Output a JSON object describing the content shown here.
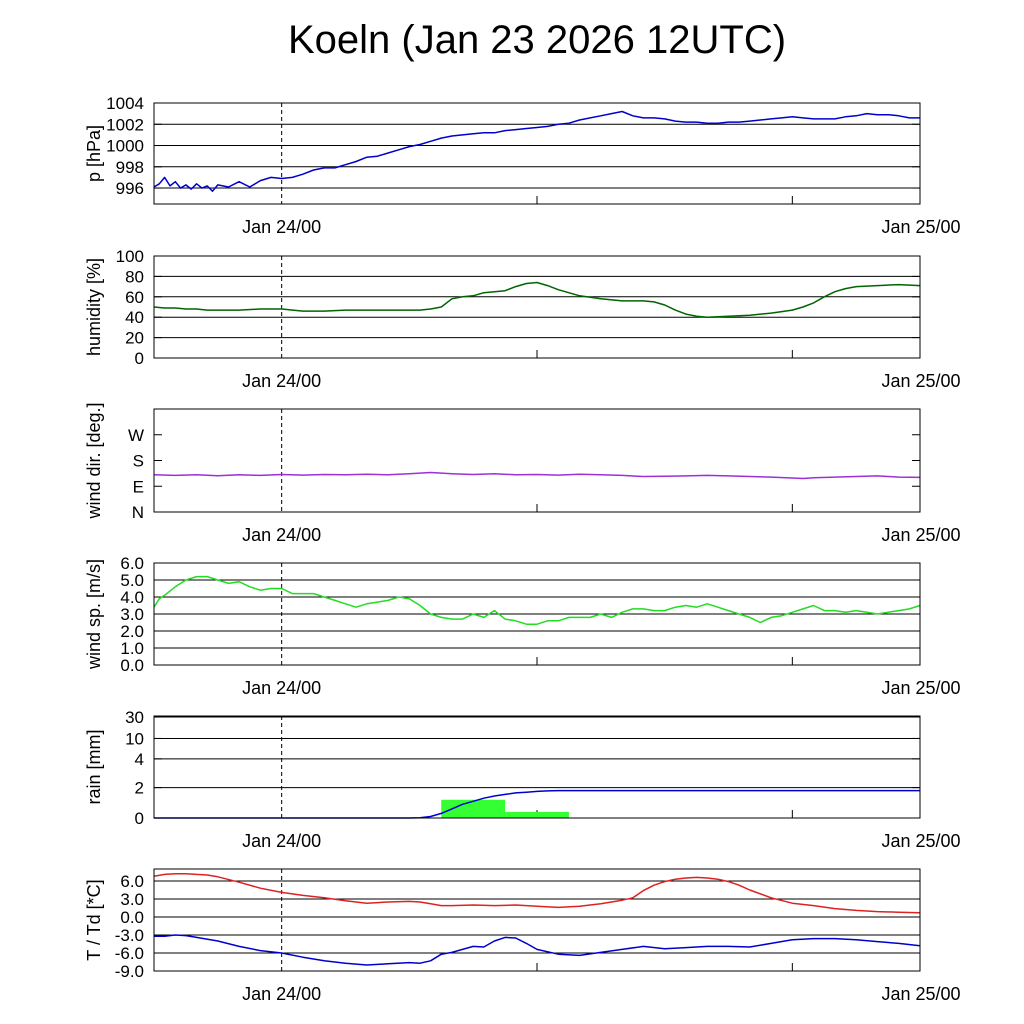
{
  "page": {
    "title": "Koeln (Jan 23 2026 12UTC)"
  },
  "time_axis": {
    "tick_labels": [
      "Jan 24/00",
      "Jan 25/00"
    ],
    "unit": "hours from Jan 23 12UTC"
  },
  "chart_data": [
    {
      "type": "line",
      "ylabel": "p [hPa]",
      "ylim": [
        994.5,
        1004
      ],
      "yticks": [
        996,
        998,
        1000,
        1002,
        1004
      ],
      "ytick_labels": [
        "996",
        "998",
        "1000",
        "1002",
        "1004"
      ],
      "grid": true,
      "series": [
        {
          "color": "#0000cc",
          "x": [
            0,
            0.5,
            1,
            1.5,
            2,
            2.5,
            3,
            3.5,
            4,
            4.5,
            5,
            5.5,
            6,
            7,
            8,
            9,
            10,
            11,
            12,
            13,
            14,
            15,
            16,
            17,
            18,
            19,
            20,
            21,
            22,
            23,
            24,
            25,
            26,
            27,
            28,
            29,
            30,
            31,
            32,
            33,
            34,
            35,
            36,
            37,
            38,
            39,
            40,
            41,
            42,
            43,
            44,
            45,
            46,
            47,
            48,
            49,
            50,
            51,
            52,
            53,
            54,
            55,
            56,
            57,
            58,
            59,
            60,
            61,
            62,
            63,
            64,
            65,
            66,
            67,
            68,
            69,
            70,
            71,
            72
          ],
          "y": [
            996.1,
            996.4,
            997.0,
            996.2,
            996.6,
            996.0,
            996.3,
            995.9,
            996.4,
            996.0,
            996.2,
            995.7,
            996.3,
            996.1,
            996.6,
            996.1,
            996.7,
            997.0,
            996.9,
            997.0,
            997.3,
            997.7,
            997.9,
            997.9,
            998.2,
            998.5,
            998.9,
            999.0,
            999.3,
            999.6,
            999.9,
            1000.1,
            1000.4,
            1000.7,
            1000.9,
            1001.0,
            1001.1,
            1001.2,
            1001.2,
            1001.4,
            1001.5,
            1001.6,
            1001.7,
            1001.8,
            1002.0,
            1002.1,
            1002.4,
            1002.6,
            1002.8,
            1003.0,
            1003.2,
            1002.8,
            1002.6,
            1002.6,
            1002.5,
            1002.3,
            1002.2,
            1002.2,
            1002.1,
            1002.1,
            1002.2,
            1002.2,
            1002.3,
            1002.4,
            1002.5,
            1002.6,
            1002.7,
            1002.6,
            1002.5,
            1002.5,
            1002.5,
            1002.7,
            1002.8,
            1003.0,
            1002.9,
            1002.9,
            1002.8,
            1002.6,
            1002.6
          ]
        }
      ]
    },
    {
      "type": "line",
      "ylabel": "humidity [%]",
      "ylim": [
        0,
        100
      ],
      "yticks": [
        0,
        20,
        40,
        60,
        80,
        100
      ],
      "ytick_labels": [
        "0",
        "20",
        "40",
        "60",
        "80",
        "100"
      ],
      "grid": true,
      "series": [
        {
          "color": "#006400",
          "x": [
            0,
            1,
            2,
            3,
            4,
            5,
            6,
            8,
            10,
            12,
            14,
            15,
            16,
            18,
            20,
            22,
            23,
            24,
            25,
            26,
            27,
            28,
            29,
            30,
            31,
            32,
            33,
            34,
            35,
            36,
            37,
            38,
            40,
            42,
            44,
            45,
            46,
            47,
            48,
            49,
            50,
            51,
            52,
            54,
            56,
            58,
            60,
            61,
            62,
            63,
            64,
            65,
            66,
            68,
            70,
            72
          ],
          "y": [
            50,
            49,
            49,
            48,
            48,
            47,
            47,
            47,
            48,
            48,
            46,
            46,
            46,
            47,
            47,
            47,
            47,
            47,
            47,
            48,
            50,
            58,
            60,
            61,
            64,
            65,
            66,
            70,
            73,
            74,
            71,
            67,
            61,
            58,
            56,
            56,
            56,
            55,
            52,
            47,
            43,
            41,
            40,
            41,
            42,
            44,
            47,
            50,
            54,
            60,
            65,
            68,
            70,
            71,
            72,
            71
          ]
        }
      ]
    },
    {
      "type": "line",
      "ylabel": "wind dir. [deg.]",
      "ylim": [
        0,
        360
      ],
      "yticks": [
        0,
        90,
        180,
        270
      ],
      "ytick_labels": [
        "N",
        "E",
        "S",
        "W"
      ],
      "grid": false,
      "series": [
        {
          "color": "#9b30d9",
          "x": [
            0,
            2,
            4,
            6,
            8,
            10,
            12,
            14,
            16,
            18,
            20,
            22,
            24,
            25,
            26,
            27,
            28,
            30,
            32,
            34,
            36,
            38,
            40,
            42,
            44,
            46,
            48,
            50,
            52,
            54,
            56,
            58,
            60,
            61,
            62,
            64,
            66,
            68,
            70,
            72
          ],
          "y": [
            130,
            128,
            130,
            127,
            130,
            128,
            131,
            129,
            131,
            130,
            132,
            130,
            134,
            136,
            138,
            136,
            134,
            131,
            134,
            130,
            131,
            129,
            132,
            130,
            128,
            124,
            125,
            126,
            128,
            126,
            124,
            122,
            119,
            117,
            120,
            122,
            124,
            126,
            122,
            121
          ]
        }
      ]
    },
    {
      "type": "line",
      "ylabel": "wind sp. [m/s]",
      "ylim": [
        0,
        6.0
      ],
      "yticks": [
        0,
        1,
        2,
        3,
        4,
        5,
        6
      ],
      "ytick_labels": [
        "0.0",
        "1.0",
        "2.0",
        "3.0",
        "4.0",
        "5.0",
        "6.0"
      ],
      "grid": true,
      "series": [
        {
          "color": "#22dd22",
          "x": [
            0,
            0.5,
            1,
            2,
            3,
            4,
            5,
            6,
            7,
            8,
            9,
            10,
            11,
            12,
            13,
            14,
            15,
            16,
            17,
            18,
            19,
            20,
            21,
            22,
            23,
            24,
            25,
            26,
            27,
            28,
            29,
            30,
            31,
            32,
            33,
            34,
            35,
            36,
            37,
            38,
            39,
            40,
            41,
            42,
            43,
            44,
            45,
            46,
            47,
            48,
            49,
            50,
            51,
            52,
            53,
            54,
            55,
            56,
            57,
            58,
            59,
            60,
            61,
            62,
            63,
            64,
            65,
            66,
            67,
            68,
            69,
            70,
            71,
            72
          ],
          "y": [
            3.4,
            3.9,
            4.1,
            4.6,
            5.0,
            5.2,
            5.2,
            5.0,
            4.8,
            4.9,
            4.6,
            4.4,
            4.5,
            4.5,
            4.2,
            4.2,
            4.2,
            4.0,
            3.8,
            3.6,
            3.4,
            3.6,
            3.7,
            3.8,
            4.0,
            3.9,
            3.5,
            3.0,
            2.8,
            2.7,
            2.7,
            3.0,
            2.8,
            3.2,
            2.7,
            2.6,
            2.4,
            2.4,
            2.6,
            2.6,
            2.8,
            2.8,
            2.8,
            3.0,
            2.8,
            3.1,
            3.3,
            3.3,
            3.2,
            3.2,
            3.4,
            3.5,
            3.4,
            3.6,
            3.4,
            3.2,
            3.0,
            2.8,
            2.5,
            2.8,
            2.9,
            3.1,
            3.3,
            3.5,
            3.2,
            3.2,
            3.1,
            3.2,
            3.1,
            3.0,
            3.1,
            3.2,
            3.3,
            3.5
          ]
        }
      ]
    },
    {
      "type": "bar_line",
      "ylabel": "rain [mm]",
      "scale": "nonlinear",
      "ylim": [
        0,
        30
      ],
      "yticks": [
        0,
        2,
        4,
        10,
        30
      ],
      "ytick_labels": [
        "0",
        "2",
        "4",
        "10",
        "30"
      ],
      "grid": true,
      "bars": {
        "color": "#33ff33",
        "x_start": [
          27,
          33
        ],
        "x_end": [
          33,
          39
        ],
        "values": [
          1.2,
          0.4
        ]
      },
      "series": [
        {
          "color": "#0000cc",
          "x": [
            0,
            24,
            25,
            26,
            27,
            28,
            29,
            30,
            31,
            32,
            33,
            34,
            35,
            36,
            37,
            38,
            40,
            44,
            48,
            72
          ],
          "y": [
            0,
            0,
            0.02,
            0.1,
            0.3,
            0.6,
            0.9,
            1.1,
            1.3,
            1.45,
            1.55,
            1.65,
            1.7,
            1.75,
            1.78,
            1.8,
            1.8,
            1.8,
            1.8,
            1.8
          ]
        }
      ]
    },
    {
      "type": "line",
      "ylabel": "T / Td [*C]",
      "ylim": [
        -9.0,
        8.0
      ],
      "yticks": [
        -9,
        -6,
        -3,
        0,
        3,
        6
      ],
      "ytick_labels": [
        "-9.0",
        "-6.0",
        "-3.0",
        "0.0",
        "3.0",
        "6.0"
      ],
      "grid": true,
      "series": [
        {
          "color": "#dd2222",
          "x": [
            0,
            1,
            2,
            3,
            4,
            5,
            6,
            8,
            10,
            12,
            14,
            16,
            18,
            20,
            22,
            24,
            25,
            26,
            27,
            28,
            30,
            32,
            34,
            36,
            38,
            40,
            42,
            44,
            45,
            46,
            47,
            48,
            49,
            50,
            51,
            52,
            53,
            54,
            55,
            56,
            58,
            60,
            62,
            64,
            66,
            68,
            70,
            72
          ],
          "y": [
            6.8,
            7.1,
            7.2,
            7.2,
            7.1,
            7.0,
            6.7,
            5.8,
            4.8,
            4.1,
            3.6,
            3.2,
            2.7,
            2.3,
            2.5,
            2.6,
            2.5,
            2.2,
            1.9,
            1.9,
            2.0,
            1.9,
            2.0,
            1.8,
            1.6,
            1.8,
            2.2,
            2.8,
            3.2,
            4.4,
            5.3,
            5.9,
            6.3,
            6.5,
            6.6,
            6.5,
            6.3,
            5.9,
            5.3,
            4.5,
            3.2,
            2.3,
            1.9,
            1.4,
            1.1,
            0.9,
            0.8,
            0.7
          ]
        },
        {
          "color": "#0000cc",
          "x": [
            0,
            1,
            2,
            3,
            4,
            6,
            8,
            10,
            12,
            14,
            16,
            18,
            20,
            22,
            24,
            25,
            26,
            27,
            28,
            30,
            31,
            32,
            33,
            34,
            35,
            36,
            38,
            40,
            42,
            44,
            46,
            48,
            50,
            52,
            54,
            56,
            58,
            60,
            62,
            64,
            66,
            68,
            70,
            72
          ],
          "y": [
            -3.2,
            -3.2,
            -3.0,
            -3.1,
            -3.4,
            -4.0,
            -4.9,
            -5.6,
            -6.0,
            -6.7,
            -7.3,
            -7.7,
            -8.0,
            -7.8,
            -7.6,
            -7.7,
            -7.3,
            -6.2,
            -5.9,
            -4.9,
            -5.0,
            -4.0,
            -3.4,
            -3.5,
            -4.4,
            -5.4,
            -6.2,
            -6.4,
            -5.9,
            -5.4,
            -4.9,
            -5.3,
            -5.1,
            -4.9,
            -4.9,
            -5.0,
            -4.4,
            -3.8,
            -3.6,
            -3.6,
            -3.8,
            -4.1,
            -4.4,
            -4.8
          ]
        }
      ]
    }
  ]
}
